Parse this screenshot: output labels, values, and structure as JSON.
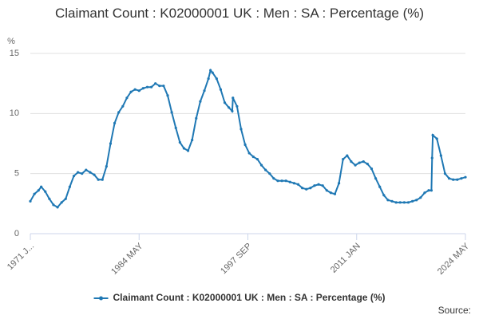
{
  "chart_data": {
    "type": "line",
    "title": "Claimant Count : K02000001 UK : Men : SA : Percentage (%)",
    "y_label": "%",
    "source": "Source:",
    "grid": true,
    "legend": "bottom",
    "xlim": [
      "1971 JAN",
      "2024 MAY"
    ],
    "xticks": [
      {
        "value": "1971 JAN",
        "label": "1971 J..."
      },
      "1984 MAY",
      "1997 SEP",
      "2011 JAN",
      "2024 MAY"
    ],
    "ylim": [
      0,
      15
    ],
    "yticks": [
      0,
      5,
      10,
      15
    ],
    "x": [
      "1971 JAN",
      "1971 JUL",
      "1972 JAN",
      "1972 MAY",
      "1972 NOV",
      "1973 MAY",
      "1973 NOV",
      "1974 MAY",
      "1974 NOV",
      "1975 MAY",
      "1975 NOV",
      "1976 MAY",
      "1976 NOV",
      "1977 MAY",
      "1977 NOV",
      "1978 MAY",
      "1978 NOV",
      "1979 MAY",
      "1979 NOV",
      "1980 MAY",
      "1980 NOV",
      "1981 MAY",
      "1981 NOV",
      "1982 MAY",
      "1982 NOV",
      "1983 MAY",
      "1983 NOV",
      "1984 MAY",
      "1984 NOV",
      "1985 MAY",
      "1985 NOV",
      "1986 MAY",
      "1986 NOV",
      "1987 MAY",
      "1987 NOV",
      "1988 MAY",
      "1988 NOV",
      "1989 MAY",
      "1989 NOV",
      "1990 MAY",
      "1990 NOV",
      "1991 MAY",
      "1991 NOV",
      "1992 MAY",
      "1992 NOV",
      "1993 FEB",
      "1993 MAY",
      "1993 NOV",
      "1994 MAY",
      "1994 NOV",
      "1995 MAY",
      "1995 OCT",
      "1995 NOV",
      "1996 MAY",
      "1996 NOV",
      "1997 MAY",
      "1997 NOV",
      "1998 MAY",
      "1998 NOV",
      "1999 MAY",
      "1999 NOV",
      "2000 MAY",
      "2000 NOV",
      "2001 MAY",
      "2001 NOV",
      "2002 MAY",
      "2002 NOV",
      "2003 MAY",
      "2003 NOV",
      "2004 MAY",
      "2004 NOV",
      "2005 MAY",
      "2005 NOV",
      "2006 MAY",
      "2006 NOV",
      "2007 MAY",
      "2007 NOV",
      "2008 MAY",
      "2008 NOV",
      "2009 MAY",
      "2009 NOV",
      "2010 MAY",
      "2010 NOV",
      "2011 MAY",
      "2011 NOV",
      "2012 MAY",
      "2012 NOV",
      "2013 MAY",
      "2013 NOV",
      "2014 MAY",
      "2014 NOV",
      "2015 MAY",
      "2015 NOV",
      "2016 MAY",
      "2016 NOV",
      "2017 MAY",
      "2017 NOV",
      "2018 MAY",
      "2018 NOV",
      "2019 MAY",
      "2019 NOV",
      "2020 MAR",
      "2020 APR",
      "2020 MAY",
      "2020 NOV",
      "2021 MAY",
      "2021 NOV",
      "2022 MAY",
      "2022 NOV",
      "2023 MAY",
      "2023 NOV",
      "2024 MAY"
    ],
    "series": [
      {
        "name": "Claimant Count : K02000001 UK : Men : SA : Percentage (%)",
        "color": "#1f78b4",
        "values": [
          2.7,
          3.3,
          3.6,
          3.9,
          3.5,
          2.9,
          2.4,
          2.2,
          2.6,
          2.9,
          3.9,
          4.8,
          5.1,
          5.0,
          5.3,
          5.1,
          4.9,
          4.5,
          4.5,
          5.6,
          7.5,
          9.2,
          10.1,
          10.6,
          11.3,
          11.8,
          12.0,
          11.9,
          12.1,
          12.2,
          12.2,
          12.5,
          12.3,
          12.3,
          11.5,
          10.1,
          8.8,
          7.6,
          7.1,
          6.9,
          7.8,
          9.6,
          11.0,
          11.9,
          12.9,
          13.6,
          13.4,
          12.9,
          12.0,
          10.9,
          10.5,
          10.2,
          11.3,
          10.6,
          8.7,
          7.4,
          6.7,
          6.4,
          6.2,
          5.7,
          5.3,
          5.0,
          4.6,
          4.4,
          4.4,
          4.4,
          4.3,
          4.2,
          4.1,
          3.8,
          3.7,
          3.8,
          4.0,
          4.1,
          4.0,
          3.6,
          3.4,
          3.3,
          4.2,
          6.2,
          6.5,
          6.0,
          5.7,
          5.9,
          6.0,
          5.8,
          5.4,
          4.6,
          3.9,
          3.2,
          2.8,
          2.7,
          2.6,
          2.6,
          2.6,
          2.6,
          2.7,
          2.8,
          3.0,
          3.4,
          3.6,
          3.6,
          6.3,
          8.2,
          7.9,
          6.5,
          5.0,
          4.6,
          4.5,
          4.5,
          4.6,
          4.7
        ]
      }
    ]
  }
}
